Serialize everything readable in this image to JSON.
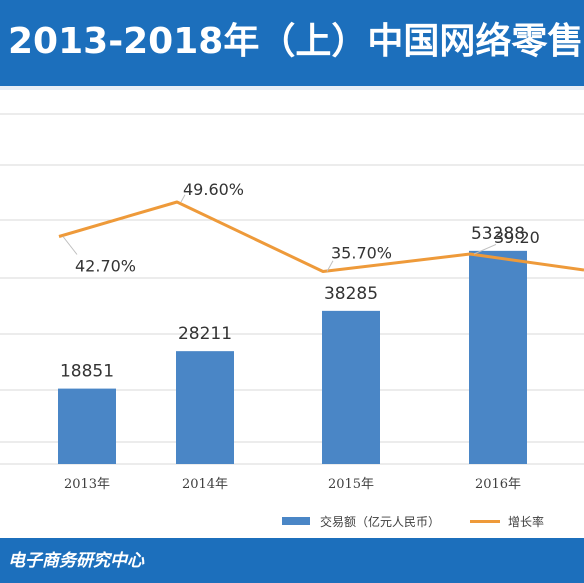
{
  "header": {
    "title": "2013-2018年（上）中国网络零售"
  },
  "footer": {
    "source": "电子商务研究中心"
  },
  "legend": {
    "bar_label": "交易额（亿元人民币）",
    "line_label": "增长率"
  },
  "chart_data": {
    "type": "bar",
    "title": "2013-2018年（上）中国网络零售",
    "categories": [
      "2013年",
      "2014年",
      "2015年",
      "2016年"
    ],
    "series": [
      {
        "name": "交易额（亿元人民币）",
        "type": "bar",
        "values": [
          18851,
          28211,
          38285,
          53288
        ],
        "labels": [
          "18851",
          "28211",
          "38285",
          "53288"
        ]
      },
      {
        "name": "增长率",
        "type": "line",
        "values": [
          42.7,
          49.6,
          35.7,
          39.2
        ],
        "labels": [
          "42.70%",
          "49.60%",
          "35.70%",
          "39.20"
        ]
      }
    ],
    "grid": true,
    "legend_position": "bottom-right",
    "colors": {
      "bar": "#4a86c6",
      "line": "#ee9a3a",
      "header": "#1c6fbc"
    }
  }
}
